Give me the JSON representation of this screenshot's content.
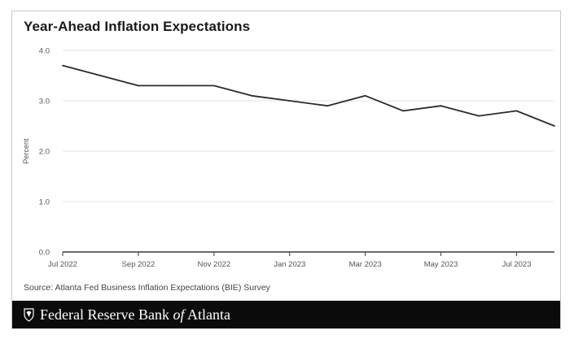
{
  "chart_data": {
    "type": "line",
    "title": "Year-Ahead Inflation Expectations",
    "xlabel": "",
    "ylabel": "Percent",
    "ylim": [
      0,
      4
    ],
    "yticks": [
      "0.0",
      "1.0",
      "2.0",
      "3.0",
      "4.0"
    ],
    "x": [
      "Jul 2022",
      "Aug 2022",
      "Sep 2022",
      "Oct 2022",
      "Nov 2022",
      "Dec 2022",
      "Jan 2023",
      "Feb 2023",
      "Mar 2023",
      "Apr 2023",
      "May 2023",
      "Jun 2023",
      "Jul 2023",
      "Aug 2023"
    ],
    "xtick_labels": [
      "Jul 2022",
      "Sep 2022",
      "Nov 2022",
      "Jan 2023",
      "Mar 2023",
      "May 2023",
      "Jul 2023"
    ],
    "series": [
      {
        "name": "Year-Ahead Inflation Expectations",
        "values": [
          3.7,
          3.5,
          3.3,
          3.3,
          3.3,
          3.1,
          3.0,
          2.9,
          3.1,
          2.8,
          2.9,
          2.7,
          2.8,
          2.5
        ]
      }
    ],
    "grid": true,
    "line_color": "#2b2b2b"
  },
  "source": "Source: Atlanta Fed Business Inflation Expectations (BIE) Survey",
  "footer": {
    "brand_main": "Federal Reserve Bank ",
    "brand_of": "of",
    "brand_end": " Atlanta",
    "seal_icon": "eagle-seal-icon"
  }
}
